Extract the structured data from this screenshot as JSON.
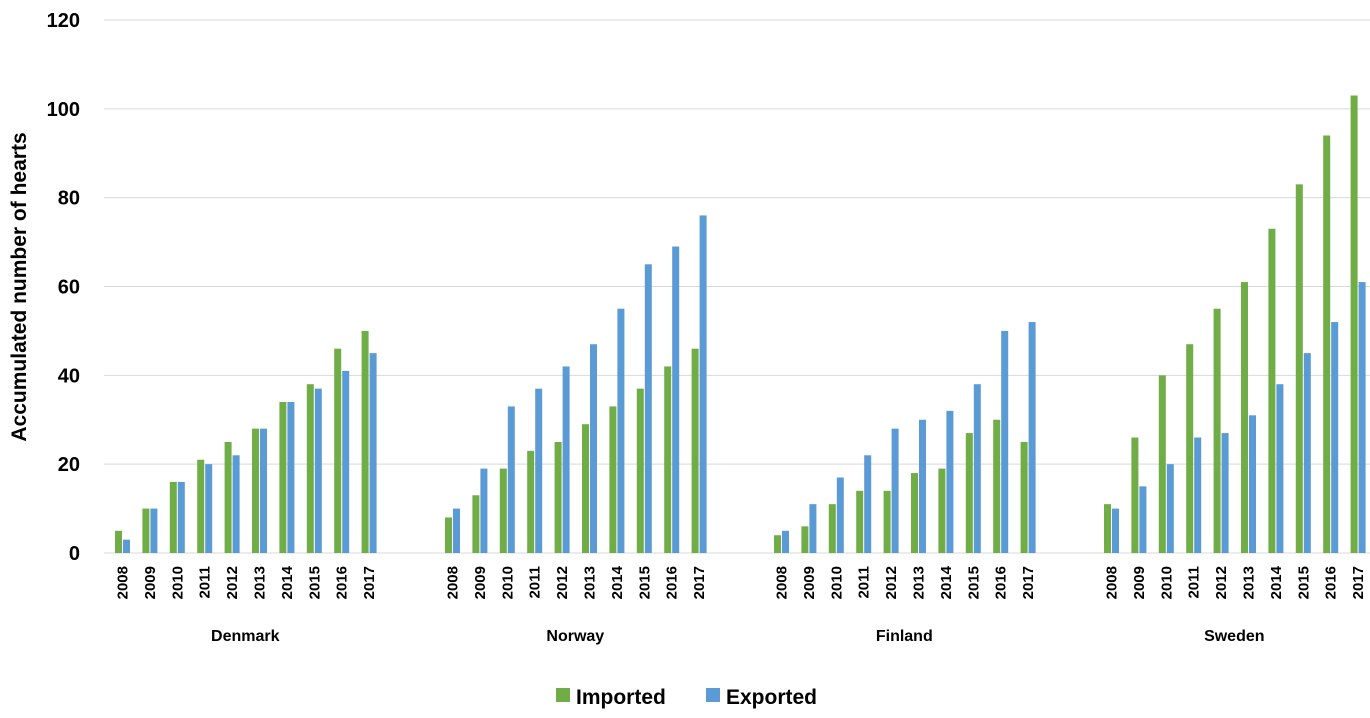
{
  "chart_data": {
    "type": "bar",
    "ylabel": "Accumulated number of hearts",
    "xlabel": "",
    "ylim": [
      0,
      120
    ],
    "yticks": [
      0,
      20,
      40,
      60,
      80,
      100,
      120
    ],
    "grid": true,
    "legend_position": "bottom",
    "series": [
      {
        "name": "Imported",
        "color": "#70ad47"
      },
      {
        "name": "Exported",
        "color": "#5b9bd5"
      }
    ],
    "groups": [
      {
        "name": "Denmark",
        "categories": [
          "2008",
          "2009",
          "2010",
          "2011",
          "2012",
          "2013",
          "2014",
          "2015",
          "2016",
          "2017"
        ],
        "imported": [
          5,
          10,
          16,
          21,
          25,
          28,
          34,
          38,
          46,
          50
        ],
        "exported": [
          3,
          10,
          16,
          20,
          22,
          28,
          34,
          37,
          41,
          45
        ]
      },
      {
        "name": "Norway",
        "categories": [
          "2008",
          "2009",
          "2010",
          "2011",
          "2012",
          "2013",
          "2014",
          "2015",
          "2016",
          "2017"
        ],
        "imported": [
          8,
          13,
          19,
          23,
          25,
          29,
          33,
          37,
          42,
          46
        ],
        "exported": [
          10,
          19,
          33,
          37,
          42,
          47,
          55,
          65,
          69,
          76
        ]
      },
      {
        "name": "Finland",
        "categories": [
          "2008",
          "2009",
          "2010",
          "2011",
          "2012",
          "2013",
          "2014",
          "2015",
          "2016",
          "2017"
        ],
        "imported": [
          4,
          6,
          11,
          14,
          14,
          18,
          19,
          27,
          30,
          25
        ],
        "exported": [
          5,
          11,
          17,
          22,
          28,
          30,
          32,
          38,
          50,
          52
        ]
      },
      {
        "name": "Sweden",
        "categories": [
          "2008",
          "2009",
          "2010",
          "2011",
          "2012",
          "2013",
          "2014",
          "2015",
          "2016",
          "2017"
        ],
        "imported": [
          11,
          26,
          40,
          47,
          55,
          61,
          73,
          83,
          94,
          103
        ],
        "exported": [
          10,
          15,
          20,
          26,
          27,
          31,
          38,
          45,
          52,
          61
        ]
      }
    ]
  }
}
